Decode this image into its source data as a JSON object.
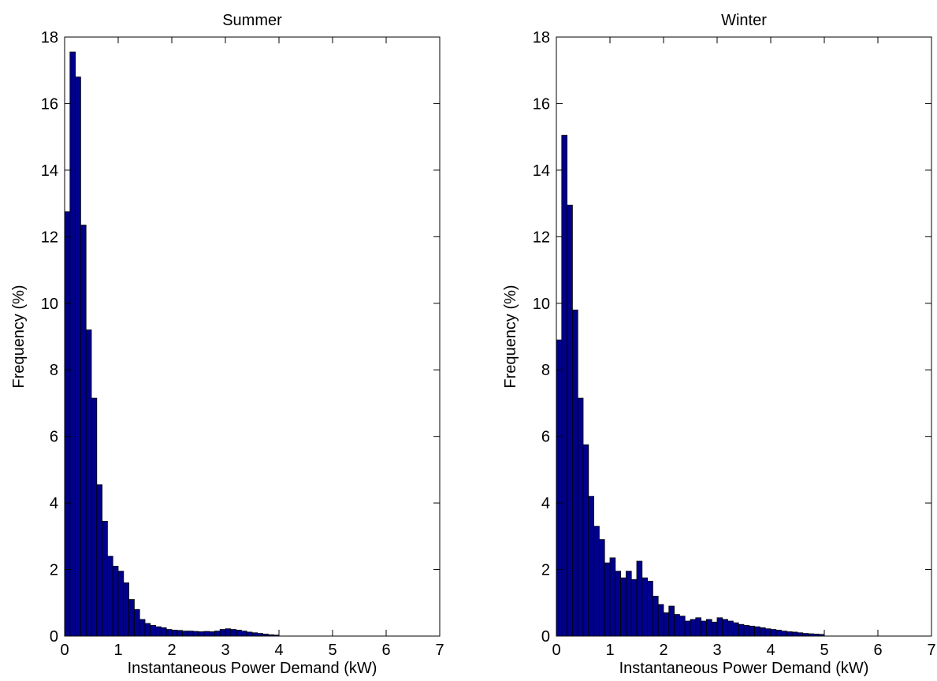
{
  "chart_data": [
    {
      "type": "bar",
      "title": "Summer",
      "xlabel": "Instantaneous Power Demand (kW)",
      "ylabel": "Frequency (%)",
      "xlim": [
        0,
        7
      ],
      "ylim": [
        0,
        18
      ],
      "xticks": [
        "0",
        "1",
        "2",
        "3",
        "4",
        "5",
        "6",
        "7"
      ],
      "yticks": [
        "0",
        "2",
        "4",
        "6",
        "8",
        "10",
        "12",
        "14",
        "16",
        "18"
      ],
      "bin_width": 0.1,
      "bar_color": "#00008B",
      "x": [
        0.05,
        0.15,
        0.25,
        0.35,
        0.45,
        0.55,
        0.65,
        0.75,
        0.85,
        0.95,
        1.05,
        1.15,
        1.25,
        1.35,
        1.45,
        1.55,
        1.65,
        1.75,
        1.85,
        1.95,
        2.05,
        2.15,
        2.25,
        2.35,
        2.45,
        2.55,
        2.65,
        2.75,
        2.85,
        2.95,
        3.05,
        3.15,
        3.25,
        3.35,
        3.45,
        3.55,
        3.65,
        3.75,
        3.85,
        3.95
      ],
      "values": [
        12.75,
        17.55,
        16.8,
        12.35,
        9.2,
        7.15,
        4.55,
        3.45,
        2.4,
        2.1,
        1.95,
        1.6,
        1.1,
        0.8,
        0.5,
        0.38,
        0.32,
        0.28,
        0.25,
        0.2,
        0.18,
        0.17,
        0.15,
        0.15,
        0.14,
        0.13,
        0.14,
        0.13,
        0.15,
        0.2,
        0.22,
        0.2,
        0.18,
        0.15,
        0.12,
        0.1,
        0.08,
        0.06,
        0.04,
        0.03
      ]
    },
    {
      "type": "bar",
      "title": "Winter",
      "xlabel": "Instantaneous Power Demand (kW)",
      "ylabel": "Frequency (%)",
      "xlim": [
        0,
        7
      ],
      "ylim": [
        0,
        18
      ],
      "xticks": [
        "0",
        "1",
        "2",
        "3",
        "4",
        "5",
        "6",
        "7"
      ],
      "yticks": [
        "0",
        "2",
        "4",
        "6",
        "8",
        "10",
        "12",
        "14",
        "16",
        "18"
      ],
      "bin_width": 0.1,
      "bar_color": "#00008B",
      "x": [
        0.05,
        0.15,
        0.25,
        0.35,
        0.45,
        0.55,
        0.65,
        0.75,
        0.85,
        0.95,
        1.05,
        1.15,
        1.25,
        1.35,
        1.45,
        1.55,
        1.65,
        1.75,
        1.85,
        1.95,
        2.05,
        2.15,
        2.25,
        2.35,
        2.45,
        2.55,
        2.65,
        2.75,
        2.85,
        2.95,
        3.05,
        3.15,
        3.25,
        3.35,
        3.45,
        3.55,
        3.65,
        3.75,
        3.85,
        3.95,
        4.05,
        4.15,
        4.25,
        4.35,
        4.45,
        4.55,
        4.65,
        4.75,
        4.85,
        4.95
      ],
      "values": [
        8.9,
        15.05,
        12.95,
        9.8,
        7.15,
        5.75,
        4.2,
        3.3,
        2.9,
        2.2,
        2.35,
        1.95,
        1.75,
        1.95,
        1.7,
        2.25,
        1.75,
        1.65,
        1.2,
        0.95,
        0.7,
        0.9,
        0.65,
        0.6,
        0.45,
        0.5,
        0.55,
        0.45,
        0.5,
        0.42,
        0.55,
        0.5,
        0.45,
        0.4,
        0.35,
        0.32,
        0.3,
        0.28,
        0.25,
        0.22,
        0.2,
        0.18,
        0.15,
        0.13,
        0.12,
        0.1,
        0.08,
        0.07,
        0.06,
        0.05
      ]
    }
  ]
}
